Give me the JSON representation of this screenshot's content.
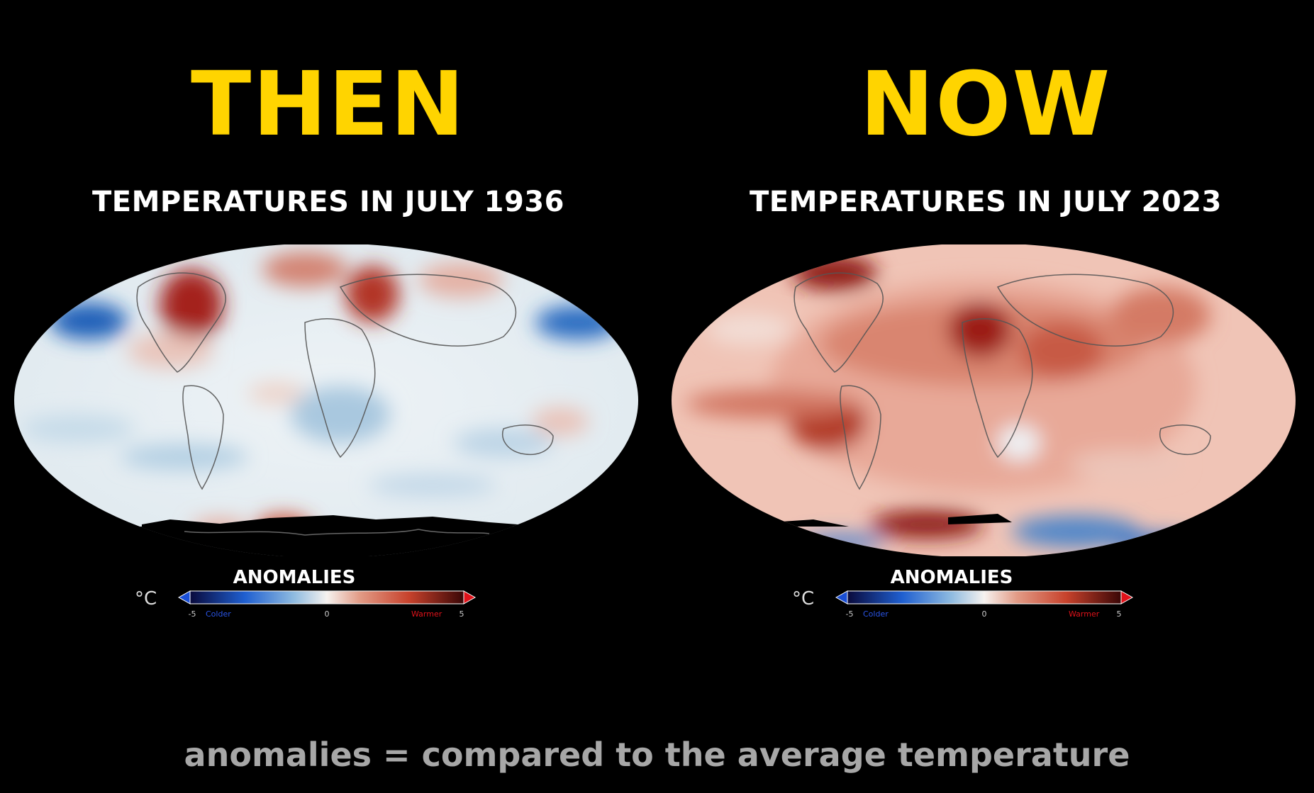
{
  "colors": {
    "heading": "#ffd400",
    "background": "#000000",
    "footer": "#a7a7a7",
    "cold": "#1a4fd6",
    "warm": "#e0121a"
  },
  "panels": [
    {
      "heading": "THEN",
      "subtitle": "TEMPERATURES IN JULY 1936",
      "map_tone": "mixed"
    },
    {
      "heading": "NOW",
      "subtitle": "TEMPERATURES IN JULY 2023",
      "map_tone": "warm"
    }
  ],
  "legend": {
    "title": "ANOMALIES",
    "unit": "°C",
    "min_label": "-5",
    "mid_label": "0",
    "max_label": "5",
    "cold_label": "Colder",
    "warm_label": "Warmer",
    "range": [
      -5,
      5
    ]
  },
  "footer": "anomalies = compared to the average temperature"
}
